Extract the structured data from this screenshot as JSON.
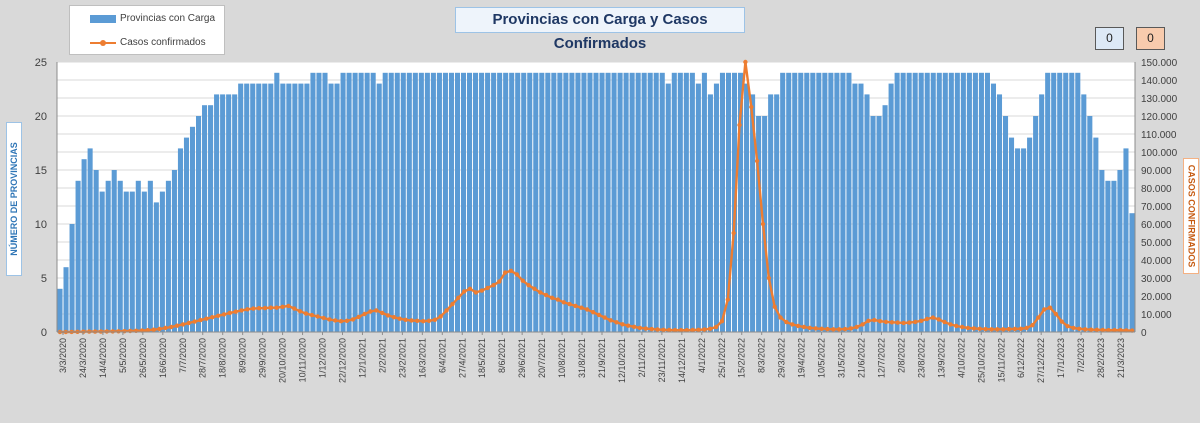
{
  "chart_data": {
    "type": "bar",
    "title": "Provincias con Carga y Casos Confirmados",
    "ylabel": "NÚMERO DE PROVINCIAS",
    "y2label": "CASOS CONFIRMADOS",
    "ylim": [
      0,
      25
    ],
    "y2lim": [
      0,
      150000
    ],
    "yticks": [
      "0",
      "5",
      "10",
      "15",
      "20",
      "25"
    ],
    "y2ticks": [
      "0",
      "10.000",
      "20.000",
      "30.000",
      "40.000",
      "50.000",
      "60.000",
      "70.000",
      "80.000",
      "90.000",
      "100.000",
      "110.000",
      "120.000",
      "130.000",
      "140.000",
      "150.000"
    ],
    "xticks": [
      "3/3/2020",
      "24/3/2020",
      "14/4/2020",
      "5/5/2020",
      "26/5/2020",
      "16/6/2020",
      "7/7/2020",
      "28/7/2020",
      "18/8/2020",
      "8/9/2020",
      "29/9/2020",
      "20/10/2020",
      "10/11/2020",
      "1/12/2020",
      "22/12/2020",
      "12/1/2021",
      "2/2/2021",
      "23/2/2021",
      "16/3/2021",
      "6/4/2021",
      "27/4/2021",
      "18/5/2021",
      "8/6/2021",
      "29/6/2021",
      "20/7/2021",
      "10/8/2021",
      "31/8/2021",
      "21/9/2021",
      "12/10/2021",
      "2/11/2021",
      "23/11/2021",
      "14/12/2021",
      "4/1/2022",
      "25/1/2022",
      "15/2/2022",
      "8/3/2022",
      "29/3/2022",
      "19/4/2022",
      "10/5/2022",
      "31/5/2022",
      "21/6/2022",
      "12/7/2022",
      "2/8/2022",
      "23/8/2022",
      "13/9/2022",
      "4/10/2022",
      "25/10/2022",
      "15/11/2022",
      "6/12/2022",
      "27/12/2022",
      "17/1/2023",
      "7/2/2023",
      "28/2/2023",
      "21/3/2023"
    ],
    "grid": true,
    "legend_position": "top-left",
    "series": [
      {
        "name": "Provincias con Carga",
        "type": "bar",
        "axis": "left",
        "color": "#5b9bd5",
        "values": [
          4,
          6,
          10,
          14,
          16,
          17,
          15,
          13,
          14,
          15,
          14,
          13,
          13,
          14,
          13,
          14,
          12,
          13,
          14,
          15,
          17,
          18,
          19,
          20,
          21,
          21,
          22,
          22,
          22,
          22,
          23,
          23,
          23,
          23,
          23,
          23,
          24,
          23,
          23,
          23,
          23,
          23,
          24,
          24,
          24,
          23,
          23,
          24,
          24,
          24,
          24,
          24,
          24,
          23,
          24,
          24,
          24,
          24,
          24,
          24,
          24,
          24,
          24,
          24,
          24,
          24,
          24,
          24,
          24,
          24,
          24,
          24,
          24,
          24,
          24,
          24,
          24,
          24,
          24,
          24,
          24,
          24,
          24,
          24,
          24,
          24,
          24,
          24,
          24,
          24,
          24,
          24,
          24,
          24,
          24,
          24,
          24,
          24,
          24,
          24,
          24,
          23,
          24,
          24,
          24,
          24,
          23,
          24,
          22,
          23,
          24,
          24,
          24,
          24,
          23,
          22,
          20,
          20,
          22,
          22,
          24,
          24,
          24,
          24,
          24,
          24,
          24,
          24,
          24,
          24,
          24,
          24,
          23,
          23,
          22,
          20,
          20,
          21,
          23,
          24,
          24,
          24,
          24,
          24,
          24,
          24,
          24,
          24,
          24,
          24,
          24,
          24,
          24,
          24,
          24,
          23,
          22,
          20,
          18,
          17,
          17,
          18,
          20,
          22,
          24,
          24,
          24,
          24,
          24,
          24,
          22,
          20,
          18,
          15,
          14,
          14,
          15,
          17,
          11
        ]
      },
      {
        "name": "Casos confirmados",
        "type": "line",
        "axis": "right",
        "color": "#ed7d31",
        "values": [
          0,
          0,
          50,
          100,
          150,
          200,
          200,
          250,
          300,
          350,
          400,
          450,
          550,
          650,
          800,
          1000,
          1300,
          1700,
          2200,
          2800,
          3500,
          4200,
          5000,
          5800,
          6600,
          7400,
          8200,
          9000,
          9800,
          10600,
          11300,
          12000,
          12600,
          13000,
          13200,
          13300,
          13500,
          13500,
          14000,
          14500,
          13000,
          11500,
          10200,
          9400,
          8600,
          7800,
          7000,
          6400,
          6000,
          6200,
          7000,
          8400,
          10000,
          11400,
          12000,
          10600,
          9200,
          8200,
          7400,
          6800,
          6400,
          6200,
          6000,
          6200,
          6800,
          8600,
          12000,
          15500,
          19000,
          22500,
          24000,
          22000,
          23000,
          24500,
          26000,
          28000,
          33000,
          34000,
          32000,
          28500,
          26000,
          24000,
          22000,
          20500,
          19000,
          18000,
          16500,
          15500,
          14500,
          13500,
          12500,
          11000,
          9500,
          8000,
          6500,
          5400,
          4300,
          3500,
          2900,
          2300,
          1900,
          1600,
          1400,
          1200,
          1100,
          1000,
          1000,
          1000,
          1100,
          1200,
          1400,
          1800,
          2800,
          6000,
          18000,
          55000,
          115000,
          150000,
          125000,
          95000,
          60000,
          30000,
          14000,
          8000,
          5500,
          4200,
          3400,
          2800,
          2300,
          2000,
          1800,
          1600,
          1500,
          1500,
          1600,
          2000,
          2800,
          4200,
          6200,
          6600,
          6000,
          5600,
          5400,
          5200,
          5000,
          5200,
          5600,
          6200,
          7200,
          8000,
          7000,
          5500,
          4200,
          3400,
          2800,
          2300,
          2000,
          1800,
          1600,
          1500,
          1500,
          1500,
          1600,
          1700,
          1800,
          2200,
          3800,
          8000,
          12500,
          13500,
          10000,
          5800,
          3200,
          2200,
          1800,
          1500,
          1300,
          1200,
          1100,
          1000,
          1000,
          1000,
          900,
          800
        ]
      }
    ]
  },
  "counters": [
    "0",
    "0"
  ]
}
